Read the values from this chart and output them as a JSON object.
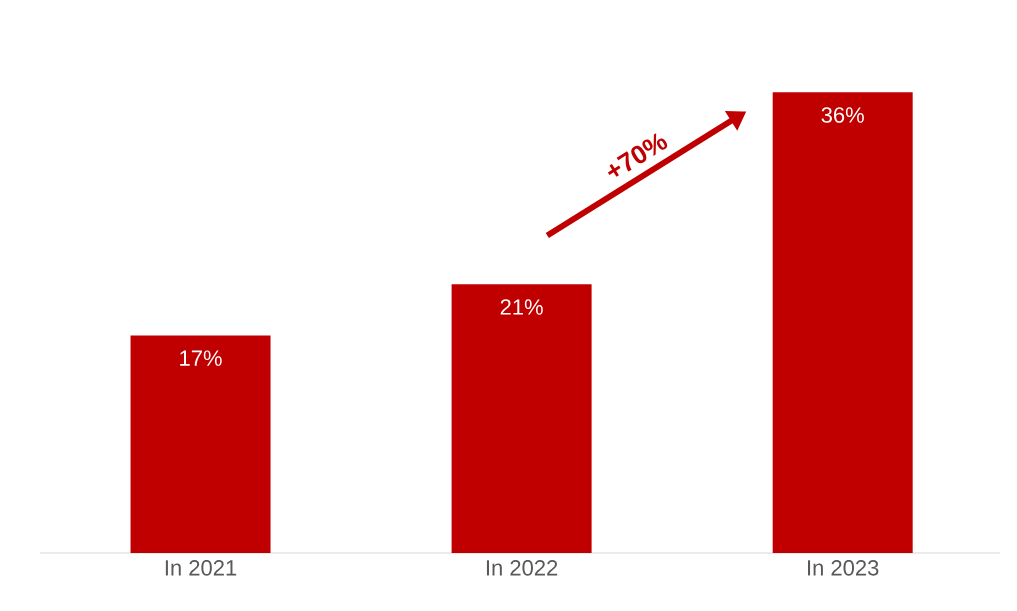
{
  "chart_data": {
    "type": "bar",
    "categories": [
      "In 2021",
      "In 2022",
      "In 2023"
    ],
    "values": [
      17,
      21,
      36
    ],
    "value_labels": [
      "17%",
      "21%",
      "36%"
    ],
    "color": "#c00000",
    "annotations": [
      "+70%"
    ]
  }
}
